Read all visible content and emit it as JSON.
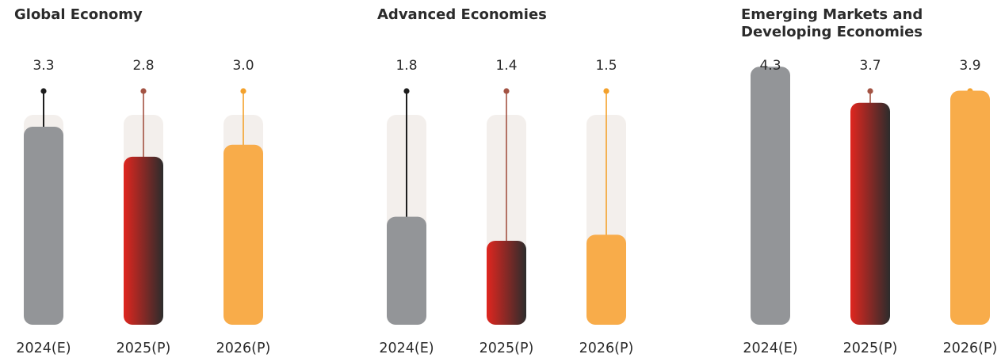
{
  "chart_data": [
    {
      "type": "bar",
      "title_lines": [
        "Global Economy"
      ],
      "categories": [
        "2024(E)",
        "2025(P)",
        "2026(P)"
      ],
      "values": [
        3.3,
        2.8,
        3.0
      ]
    },
    {
      "type": "bar",
      "title_lines": [
        "Advanced Economies"
      ],
      "categories": [
        "2024(E)",
        "2025(P)",
        "2026(P)"
      ],
      "values": [
        1.8,
        1.4,
        1.5
      ]
    },
    {
      "type": "bar",
      "title_lines": [
        "Emerging Markets and",
        "Developing Economies"
      ],
      "categories": [
        "2024(E)",
        "2025(P)",
        "2026(P)"
      ],
      "values": [
        4.3,
        3.7,
        3.9
      ]
    }
  ],
  "colors": {
    "track": "#f3efec",
    "bar_2024": "#939598",
    "bar_2025_start": "#e0261f",
    "bar_2025_end": "#2c2c2c",
    "bar_2026": "#f8ac4a",
    "pin_2024": "#1e1e1e",
    "pin_2025": "#a35343",
    "pin_2026": "#f3a12c"
  }
}
